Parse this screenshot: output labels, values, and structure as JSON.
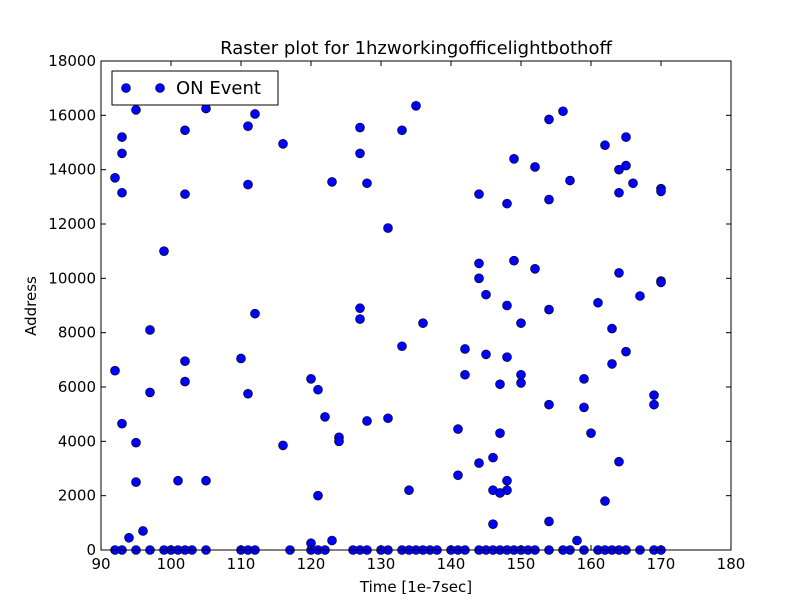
{
  "chart_data": {
    "type": "scatter",
    "title": "Raster plot for 1hzworkingofficelightbothoff",
    "xlabel": "Time [1e-7sec]",
    "ylabel": "Address",
    "xlim": [
      90,
      180
    ],
    "ylim": [
      0,
      18000
    ],
    "xticks": [
      90,
      100,
      110,
      120,
      130,
      140,
      150,
      160,
      170,
      180
    ],
    "yticks": [
      0,
      2000,
      4000,
      6000,
      8000,
      10000,
      12000,
      14000,
      16000,
      18000
    ],
    "grid": false,
    "legend_position": "top-left",
    "series": [
      {
        "name": "ON Event",
        "color": "#0000ff",
        "points": [
          [
            92,
            13700
          ],
          [
            92,
            6600
          ],
          [
            92,
            0
          ],
          [
            93,
            15200
          ],
          [
            93,
            14600
          ],
          [
            93,
            13150
          ],
          [
            93,
            4650
          ],
          [
            93,
            0
          ],
          [
            94,
            450
          ],
          [
            95,
            16200
          ],
          [
            95,
            3950
          ],
          [
            95,
            2500
          ],
          [
            95,
            0
          ],
          [
            96,
            700
          ],
          [
            97,
            8100
          ],
          [
            97,
            5800
          ],
          [
            97,
            0
          ],
          [
            99,
            11000
          ],
          [
            99,
            0
          ],
          [
            100,
            0
          ],
          [
            101,
            2550
          ],
          [
            101,
            0
          ],
          [
            102,
            15450
          ],
          [
            102,
            13100
          ],
          [
            102,
            6950
          ],
          [
            102,
            6200
          ],
          [
            102,
            0
          ],
          [
            103,
            0
          ],
          [
            105,
            16250
          ],
          [
            105,
            2550
          ],
          [
            105,
            0
          ],
          [
            110,
            7050
          ],
          [
            110,
            0
          ],
          [
            111,
            15600
          ],
          [
            111,
            13450
          ],
          [
            111,
            5750
          ],
          [
            111,
            0
          ],
          [
            112,
            16050
          ],
          [
            112,
            8700
          ],
          [
            112,
            0
          ],
          [
            116,
            14950
          ],
          [
            116,
            3850
          ],
          [
            117,
            0
          ],
          [
            120,
            6300
          ],
          [
            120,
            250
          ],
          [
            120,
            0
          ],
          [
            121,
            5900
          ],
          [
            121,
            2000
          ],
          [
            121,
            0
          ],
          [
            122,
            4900
          ],
          [
            122,
            0
          ],
          [
            123,
            13550
          ],
          [
            123,
            350
          ],
          [
            124,
            4150
          ],
          [
            124,
            4000
          ],
          [
            126,
            0
          ],
          [
            127,
            15550
          ],
          [
            127,
            14600
          ],
          [
            127,
            8900
          ],
          [
            127,
            8500
          ],
          [
            127,
            0
          ],
          [
            128,
            13500
          ],
          [
            128,
            4750
          ],
          [
            128,
            0
          ],
          [
            130,
            0
          ],
          [
            131,
            11850
          ],
          [
            131,
            4850
          ],
          [
            131,
            0
          ],
          [
            133,
            15450
          ],
          [
            133,
            7500
          ],
          [
            133,
            0
          ],
          [
            134,
            2200
          ],
          [
            134,
            0
          ],
          [
            135,
            16350
          ],
          [
            135,
            0
          ],
          [
            136,
            8350
          ],
          [
            136,
            0
          ],
          [
            137,
            0
          ],
          [
            138,
            0
          ],
          [
            140,
            0
          ],
          [
            141,
            4450
          ],
          [
            141,
            2750
          ],
          [
            141,
            0
          ],
          [
            142,
            7400
          ],
          [
            142,
            6450
          ],
          [
            142,
            0
          ],
          [
            144,
            13100
          ],
          [
            144,
            10550
          ],
          [
            144,
            10000
          ],
          [
            144,
            3200
          ],
          [
            144,
            0
          ],
          [
            145,
            9400
          ],
          [
            145,
            7200
          ],
          [
            145,
            0
          ],
          [
            146,
            3400
          ],
          [
            146,
            2200
          ],
          [
            146,
            950
          ],
          [
            146,
            0
          ],
          [
            147,
            6100
          ],
          [
            147,
            4300
          ],
          [
            147,
            2100
          ],
          [
            147,
            0
          ],
          [
            148,
            12750
          ],
          [
            148,
            9000
          ],
          [
            148,
            7100
          ],
          [
            148,
            2550
          ],
          [
            148,
            2200
          ],
          [
            148,
            0
          ],
          [
            149,
            14400
          ],
          [
            149,
            10650
          ],
          [
            149,
            0
          ],
          [
            150,
            8350
          ],
          [
            150,
            6450
          ],
          [
            150,
            6150
          ],
          [
            150,
            0
          ],
          [
            151,
            0
          ],
          [
            152,
            14100
          ],
          [
            152,
            10350
          ],
          [
            152,
            0
          ],
          [
            154,
            15850
          ],
          [
            154,
            12900
          ],
          [
            154,
            8850
          ],
          [
            154,
            5350
          ],
          [
            154,
            1050
          ],
          [
            154,
            0
          ],
          [
            156,
            16150
          ],
          [
            156,
            0
          ],
          [
            157,
            13600
          ],
          [
            157,
            0
          ],
          [
            158,
            350
          ],
          [
            159,
            6300
          ],
          [
            159,
            5250
          ],
          [
            159,
            0
          ],
          [
            160,
            4300
          ],
          [
            161,
            9100
          ],
          [
            161,
            0
          ],
          [
            162,
            14900
          ],
          [
            162,
            1800
          ],
          [
            162,
            0
          ],
          [
            163,
            8150
          ],
          [
            163,
            6850
          ],
          [
            163,
            0
          ],
          [
            164,
            14000
          ],
          [
            164,
            13150
          ],
          [
            164,
            10200
          ],
          [
            164,
            3250
          ],
          [
            164,
            0
          ],
          [
            165,
            15200
          ],
          [
            165,
            14150
          ],
          [
            165,
            7300
          ],
          [
            165,
            0
          ],
          [
            166,
            13500
          ],
          [
            167,
            9350
          ],
          [
            167,
            0
          ],
          [
            169,
            5700
          ],
          [
            169,
            5350
          ],
          [
            169,
            0
          ],
          [
            170,
            13300
          ],
          [
            170,
            13200
          ],
          [
            170,
            9900
          ],
          [
            170,
            9850
          ],
          [
            170,
            0
          ]
        ]
      }
    ]
  }
}
